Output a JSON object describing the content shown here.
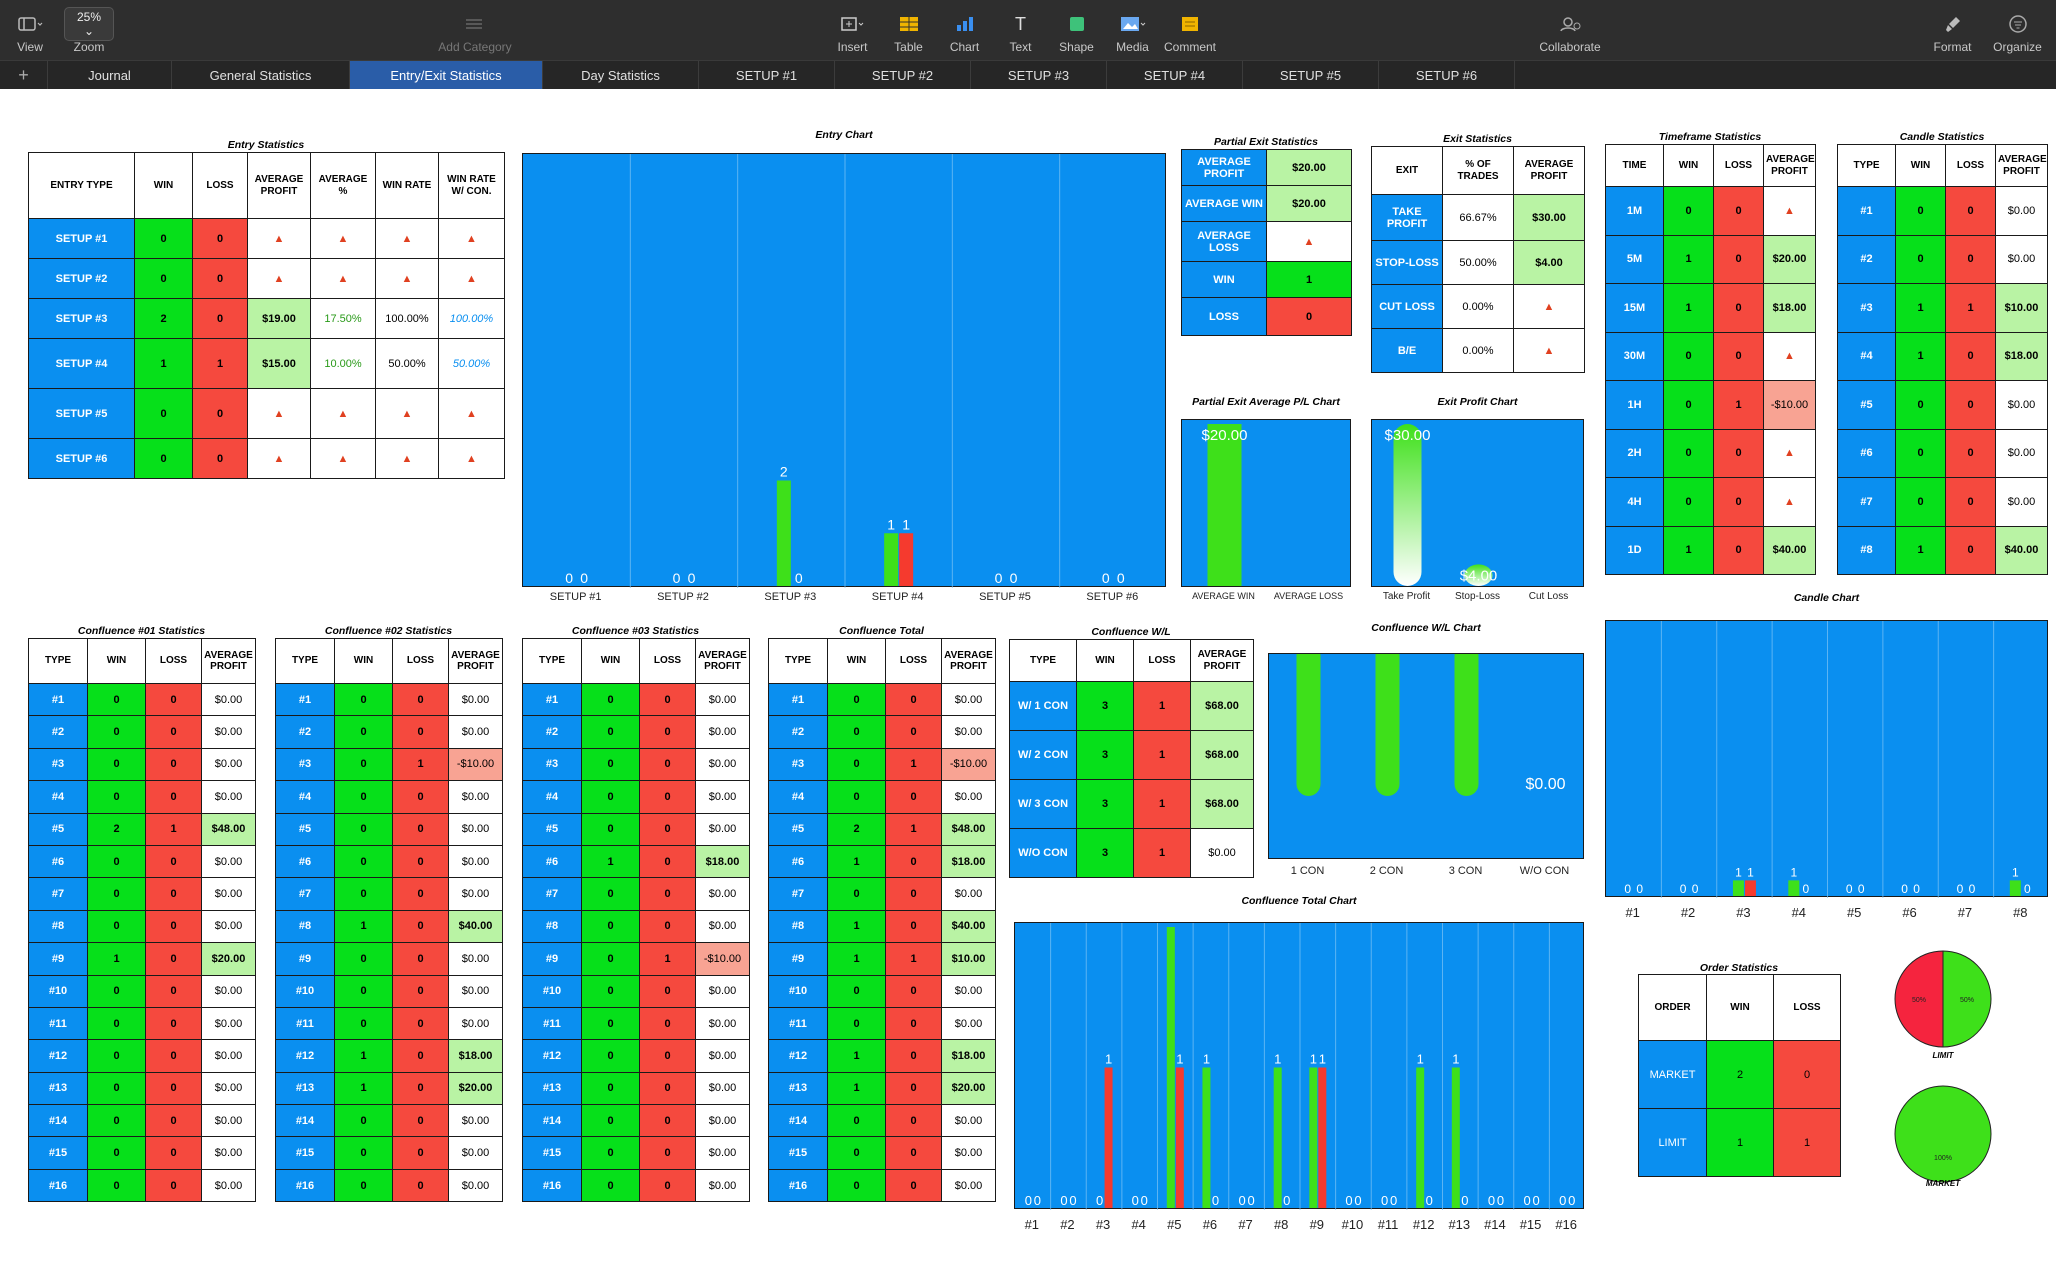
{
  "toolbar": {
    "view": "View",
    "zoom_value": "25%",
    "zoom": "Zoom",
    "add_category": "Add Category",
    "insert": "Insert",
    "table": "Table",
    "chart": "Chart",
    "text": "Text",
    "shape": "Shape",
    "media": "Media",
    "comment": "Comment",
    "collaborate": "Collaborate",
    "format": "Format",
    "organize": "Organize"
  },
  "tabs": [
    "Journal",
    "General Statistics",
    "Entry/Exit Statistics",
    "Day Statistics",
    "SETUP #1",
    "SETUP #2",
    "SETUP #3",
    "SETUP #4",
    "SETUP #5",
    "SETUP #6"
  ],
  "active_tab": 2,
  "warn_glyph": "▲",
  "entry": {
    "title": "Entry Statistics",
    "headers": [
      "ENTRY TYPE",
      "WIN",
      "LOSS",
      "AVERAGE PROFIT",
      "AVERAGE %",
      "WIN RATE",
      "WIN RATE W/ CON."
    ],
    "rows": [
      [
        "SETUP #1",
        "0",
        "0",
        "!",
        "!",
        "!",
        "!"
      ],
      [
        "SETUP #2",
        "0",
        "0",
        "!",
        "!",
        "!",
        "!"
      ],
      [
        "SETUP #3",
        "2",
        "0",
        "$19.00",
        "17.50%",
        "100.00%",
        "100.00%"
      ],
      [
        "SETUP #4",
        "1",
        "1",
        "$15.00",
        "10.00%",
        "50.00%",
        "50.00%"
      ],
      [
        "SETUP #5",
        "0",
        "0",
        "!",
        "!",
        "!",
        "!"
      ],
      [
        "SETUP #6",
        "0",
        "0",
        "!",
        "!",
        "!",
        "!"
      ]
    ]
  },
  "partial": {
    "title": "Partial Exit Statistics",
    "rows": [
      [
        "AVERAGE PROFIT",
        "$20.00"
      ],
      [
        "AVERAGE WIN",
        "$20.00"
      ],
      [
        "AVERAGE LOSS",
        "!"
      ],
      [
        "WIN",
        "1"
      ],
      [
        "LOSS",
        "0"
      ]
    ]
  },
  "exit": {
    "title": "Exit Statistics",
    "headers": [
      "EXIT",
      "% OF TRADES",
      "AVERAGE PROFIT"
    ],
    "rows": [
      [
        "TAKE PROFIT",
        "66.67%",
        "$30.00"
      ],
      [
        "STOP-LOSS",
        "50.00%",
        "$4.00"
      ],
      [
        "CUT LOSS",
        "0.00%",
        "!"
      ],
      [
        "B/E",
        "0.00%",
        "!"
      ]
    ]
  },
  "timeframe": {
    "title": "Timeframe Statistics",
    "headers": [
      "TIME",
      "WIN",
      "LOSS",
      "AVERAGE PROFIT"
    ],
    "rows": [
      [
        "1M",
        "0",
        "0",
        "!"
      ],
      [
        "5M",
        "1",
        "0",
        "$20.00"
      ],
      [
        "15M",
        "1",
        "0",
        "$18.00"
      ],
      [
        "30M",
        "0",
        "0",
        "!"
      ],
      [
        "1H",
        "0",
        "1",
        "-$10.00"
      ],
      [
        "2H",
        "0",
        "0",
        "!"
      ],
      [
        "4H",
        "0",
        "0",
        "!"
      ],
      [
        "1D",
        "1",
        "0",
        "$40.00"
      ]
    ]
  },
  "candle": {
    "title": "Candle Statistics",
    "headers": [
      "TYPE",
      "WIN",
      "LOSS",
      "AVERAGE PROFIT"
    ],
    "rows": [
      [
        "#1",
        "0",
        "0",
        "$0.00"
      ],
      [
        "#2",
        "0",
        "0",
        "$0.00"
      ],
      [
        "#3",
        "1",
        "1",
        "$10.00"
      ],
      [
        "#4",
        "1",
        "0",
        "$18.00"
      ],
      [
        "#5",
        "0",
        "0",
        "$0.00"
      ],
      [
        "#6",
        "0",
        "0",
        "$0.00"
      ],
      [
        "#7",
        "0",
        "0",
        "$0.00"
      ],
      [
        "#8",
        "1",
        "0",
        "$40.00"
      ]
    ]
  },
  "conf_headers": [
    "TYPE",
    "WIN",
    "LOSS",
    "AVERAGE PROFIT"
  ],
  "confluence": [
    {
      "title": "Confluence #01 Statistics",
      "rows": [
        [
          "#1",
          "0",
          "0",
          "$0.00"
        ],
        [
          "#2",
          "0",
          "0",
          "$0.00"
        ],
        [
          "#3",
          "0",
          "0",
          "$0.00"
        ],
        [
          "#4",
          "0",
          "0",
          "$0.00"
        ],
        [
          "#5",
          "2",
          "1",
          "$48.00"
        ],
        [
          "#6",
          "0",
          "0",
          "$0.00"
        ],
        [
          "#7",
          "0",
          "0",
          "$0.00"
        ],
        [
          "#8",
          "0",
          "0",
          "$0.00"
        ],
        [
          "#9",
          "1",
          "0",
          "$20.00"
        ],
        [
          "#10",
          "0",
          "0",
          "$0.00"
        ],
        [
          "#11",
          "0",
          "0",
          "$0.00"
        ],
        [
          "#12",
          "0",
          "0",
          "$0.00"
        ],
        [
          "#13",
          "0",
          "0",
          "$0.00"
        ],
        [
          "#14",
          "0",
          "0",
          "$0.00"
        ],
        [
          "#15",
          "0",
          "0",
          "$0.00"
        ],
        [
          "#16",
          "0",
          "0",
          "$0.00"
        ]
      ]
    },
    {
      "title": "Confluence #02 Statistics",
      "rows": [
        [
          "#1",
          "0",
          "0",
          "$0.00"
        ],
        [
          "#2",
          "0",
          "0",
          "$0.00"
        ],
        [
          "#3",
          "0",
          "1",
          "-$10.00"
        ],
        [
          "#4",
          "0",
          "0",
          "$0.00"
        ],
        [
          "#5",
          "0",
          "0",
          "$0.00"
        ],
        [
          "#6",
          "0",
          "0",
          "$0.00"
        ],
        [
          "#7",
          "0",
          "0",
          "$0.00"
        ],
        [
          "#8",
          "1",
          "0",
          "$40.00"
        ],
        [
          "#9",
          "0",
          "0",
          "$0.00"
        ],
        [
          "#10",
          "0",
          "0",
          "$0.00"
        ],
        [
          "#11",
          "0",
          "0",
          "$0.00"
        ],
        [
          "#12",
          "1",
          "0",
          "$18.00"
        ],
        [
          "#13",
          "1",
          "0",
          "$20.00"
        ],
        [
          "#14",
          "0",
          "0",
          "$0.00"
        ],
        [
          "#15",
          "0",
          "0",
          "$0.00"
        ],
        [
          "#16",
          "0",
          "0",
          "$0.00"
        ]
      ]
    },
    {
      "title": "Confluence #03 Statistics",
      "rows": [
        [
          "#1",
          "0",
          "0",
          "$0.00"
        ],
        [
          "#2",
          "0",
          "0",
          "$0.00"
        ],
        [
          "#3",
          "0",
          "0",
          "$0.00"
        ],
        [
          "#4",
          "0",
          "0",
          "$0.00"
        ],
        [
          "#5",
          "0",
          "0",
          "$0.00"
        ],
        [
          "#6",
          "1",
          "0",
          "$18.00"
        ],
        [
          "#7",
          "0",
          "0",
          "$0.00"
        ],
        [
          "#8",
          "0",
          "0",
          "$0.00"
        ],
        [
          "#9",
          "0",
          "1",
          "-$10.00"
        ],
        [
          "#10",
          "0",
          "0",
          "$0.00"
        ],
        [
          "#11",
          "0",
          "0",
          "$0.00"
        ],
        [
          "#12",
          "0",
          "0",
          "$0.00"
        ],
        [
          "#13",
          "0",
          "0",
          "$0.00"
        ],
        [
          "#14",
          "0",
          "0",
          "$0.00"
        ],
        [
          "#15",
          "0",
          "0",
          "$0.00"
        ],
        [
          "#16",
          "0",
          "0",
          "$0.00"
        ]
      ]
    },
    {
      "title": "Confluence Total",
      "rows": [
        [
          "#1",
          "0",
          "0",
          "$0.00"
        ],
        [
          "#2",
          "0",
          "0",
          "$0.00"
        ],
        [
          "#3",
          "0",
          "1",
          "-$10.00"
        ],
        [
          "#4",
          "0",
          "0",
          "$0.00"
        ],
        [
          "#5",
          "2",
          "1",
          "$48.00"
        ],
        [
          "#6",
          "1",
          "0",
          "$18.00"
        ],
        [
          "#7",
          "0",
          "0",
          "$0.00"
        ],
        [
          "#8",
          "1",
          "0",
          "$40.00"
        ],
        [
          "#9",
          "1",
          "1",
          "$10.00"
        ],
        [
          "#10",
          "0",
          "0",
          "$0.00"
        ],
        [
          "#11",
          "0",
          "0",
          "$0.00"
        ],
        [
          "#12",
          "1",
          "0",
          "$18.00"
        ],
        [
          "#13",
          "1",
          "0",
          "$20.00"
        ],
        [
          "#14",
          "0",
          "0",
          "$0.00"
        ],
        [
          "#15",
          "0",
          "0",
          "$0.00"
        ],
        [
          "#16",
          "0",
          "0",
          "$0.00"
        ]
      ]
    }
  ],
  "conf_wl": {
    "title": "Confluence W/L",
    "headers": [
      "TYPE",
      "WIN",
      "LOSS",
      "AVERAGE PROFIT"
    ],
    "rows": [
      [
        "W/ 1 CON",
        "3",
        "1",
        "$68.00"
      ],
      [
        "W/ 2 CON",
        "3",
        "1",
        "$68.00"
      ],
      [
        "W/ 3 CON",
        "3",
        "1",
        "$68.00"
      ],
      [
        "W/O CON",
        "3",
        "1",
        "$0.00"
      ]
    ]
  },
  "order": {
    "title": "Order Statistics",
    "headers": [
      "ORDER",
      "WIN",
      "LOSS"
    ],
    "rows": [
      [
        "MARKET",
        "2",
        "0"
      ],
      [
        "LIMIT",
        "1",
        "1"
      ]
    ]
  },
  "colors": {
    "win": "#3ee01a",
    "loss": "#f53a2e",
    "bg": "#0a8ff0"
  },
  "chart_data": [
    {
      "id": "entry_chart",
      "type": "bar",
      "title": "Entry Chart",
      "categories": [
        "SETUP #1",
        "SETUP #2",
        "SETUP #3",
        "SETUP #4",
        "SETUP #5",
        "SETUP #6"
      ],
      "ylim": [
        0,
        8
      ],
      "series": [
        {
          "values": [
            0,
            0,
            2,
            1,
            0,
            0
          ]
        },
        {
          "values": [
            0,
            0,
            0,
            1,
            0,
            0
          ]
        }
      ]
    },
    {
      "id": "partial_chart",
      "type": "bar",
      "title": "Partial Exit Average P/L Chart",
      "categories": [
        "AVERAGE WIN",
        "AVERAGE LOSS"
      ],
      "ylim": [
        0,
        20
      ],
      "series": [
        {
          "values": [
            20,
            0
          ],
          "labels": [
            "$20.00",
            ""
          ]
        }
      ]
    },
    {
      "id": "exit_chart",
      "type": "bar",
      "title": "Exit Profit Chart",
      "categories": [
        "Take Profit",
        "Stop-Loss",
        "Cut Loss"
      ],
      "ylim": [
        0,
        30
      ],
      "series": [
        {
          "values": [
            30,
            4,
            0
          ],
          "labels": [
            "$30.00",
            "$4.00",
            ""
          ]
        }
      ]
    },
    {
      "id": "candle_chart",
      "type": "bar",
      "title": "Candle Chart",
      "categories": [
        "#1",
        "#2",
        "#3",
        "#4",
        "#5",
        "#6",
        "#7",
        "#8"
      ],
      "ylim": [
        0,
        8
      ],
      "series": [
        {
          "values": [
            0,
            0,
            1,
            1,
            0,
            0,
            0,
            1
          ]
        },
        {
          "values": [
            0,
            0,
            1,
            0,
            0,
            0,
            0,
            0
          ]
        }
      ]
    },
    {
      "id": "conf_wl_chart",
      "type": "bar",
      "title": "Confluence W/L Chart",
      "categories": [
        "1 CON",
        "2 CON",
        "3 CON",
        "W/O CON"
      ],
      "ylim": [
        0,
        68
      ],
      "series": [
        {
          "values": [
            68,
            68,
            68,
            0
          ],
          "labels": [
            "",
            "",
            "",
            "$0.00"
          ]
        }
      ]
    },
    {
      "id": "conf_total_chart",
      "type": "bar",
      "title": "Confluence Total Chart",
      "categories": [
        "#1",
        "#2",
        "#3",
        "#4",
        "#5",
        "#6",
        "#7",
        "#8",
        "#9",
        "#10",
        "#11",
        "#12",
        "#13",
        "#14",
        "#15",
        "#16"
      ],
      "ylim": [
        0,
        2
      ],
      "series": [
        {
          "values": [
            0,
            0,
            0,
            0,
            2,
            1,
            0,
            1,
            1,
            0,
            0,
            1,
            1,
            0,
            0,
            0
          ]
        },
        {
          "values": [
            0,
            0,
            1,
            0,
            1,
            0,
            0,
            0,
            1,
            0,
            0,
            0,
            0,
            0,
            0,
            0
          ]
        }
      ]
    },
    {
      "id": "limit_pie",
      "type": "pie",
      "label": "LIMIT",
      "slices": [
        {
          "value": 50,
          "label": "50%"
        },
        {
          "value": 50,
          "label": "50%"
        }
      ]
    },
    {
      "id": "market_pie",
      "type": "pie",
      "label": "MARKET",
      "slices": [
        {
          "value": 100,
          "label": "100%"
        }
      ]
    }
  ]
}
